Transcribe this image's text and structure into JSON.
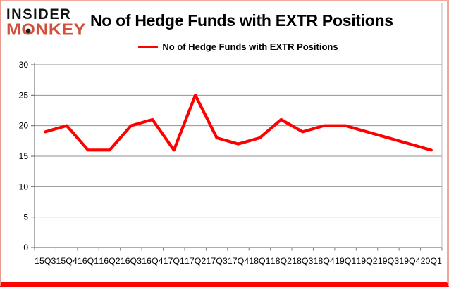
{
  "brand": {
    "line1": "INSIDER",
    "line2_pre": "M",
    "line2_o": "O",
    "line2_post": "NKEY"
  },
  "title": "No of Hedge Funds with EXTR Positions",
  "legend": {
    "label": "No of Hedge Funds with EXTR Positions"
  },
  "colors": {
    "line": "#ff0000",
    "brand_black": "#121212",
    "brand_red": "#d0503c",
    "grid": "#929292",
    "axis": "#7a7a7a",
    "plot_border": "#b9b9b9",
    "text": "#000000",
    "border_bottom": "#fe0505"
  },
  "chart_data": {
    "type": "line",
    "title": "No of Hedge Funds with EXTR Positions",
    "categories": [
      "15Q3",
      "15Q4",
      "16Q1",
      "16Q2",
      "16Q3",
      "16Q4",
      "17Q1",
      "17Q2",
      "17Q3",
      "17Q4",
      "18Q1",
      "18Q2",
      "18Q3",
      "18Q4",
      "19Q1",
      "19Q2",
      "19Q3",
      "19Q4",
      "20Q1"
    ],
    "series": [
      {
        "name": "No of Hedge Funds with EXTR Positions",
        "values": [
          19,
          20,
          16,
          16,
          20,
          21,
          16,
          25,
          18,
          17,
          18,
          21,
          19,
          20,
          20,
          19,
          18,
          17,
          16
        ]
      }
    ],
    "xlabel": "",
    "ylabel": "",
    "ylim": [
      0,
      30
    ],
    "yticks": [
      0,
      5,
      10,
      15,
      20,
      25,
      30
    ],
    "grid": true,
    "legend_position": "top-center"
  }
}
